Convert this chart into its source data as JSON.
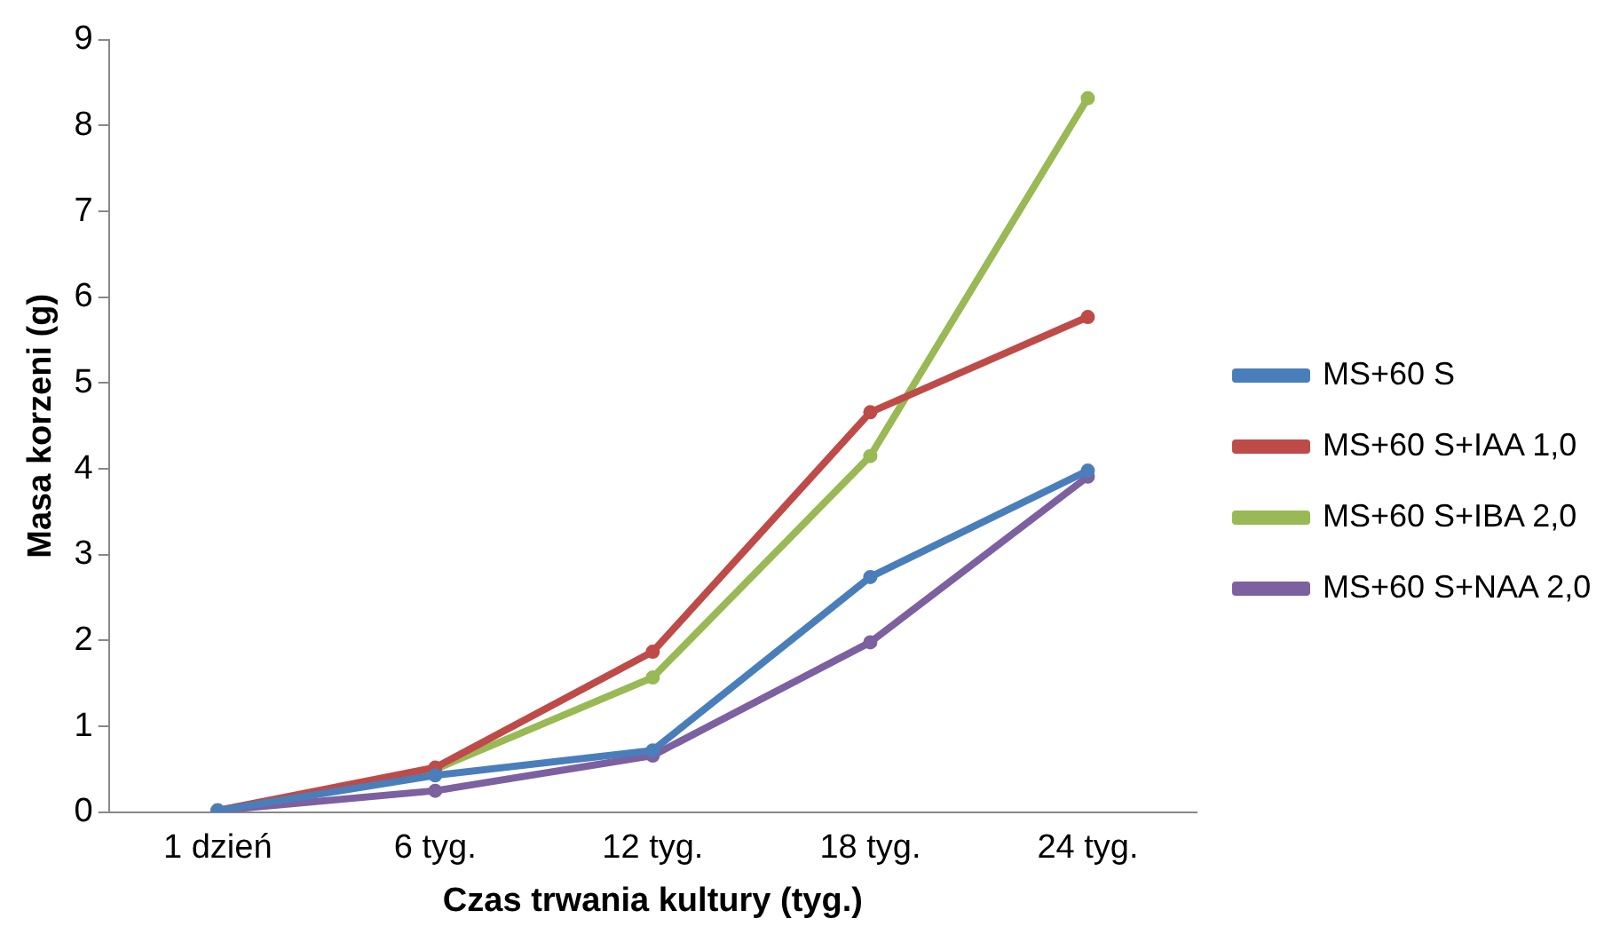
{
  "chart_data": {
    "type": "line",
    "xlabel": "Czas trwania kultury (tyg.)",
    "ylabel": "Masa korzeni (g)",
    "categories": [
      "1 dzień",
      "6 tyg.",
      "12 tyg.",
      "18 tyg.",
      "24 tyg."
    ],
    "series": [
      {
        "name": "MS+60 S",
        "color": "#4a7ebb",
        "values": [
          0.02,
          0.43,
          0.72,
          2.74,
          3.98
        ]
      },
      {
        "name": "MS+60 S+IAA 1,0",
        "color": "#be4b48",
        "values": [
          0.02,
          0.52,
          1.87,
          4.66,
          5.77
        ]
      },
      {
        "name": "MS+60 S+IBA 2,0",
        "color": "#98b954",
        "values": [
          0.02,
          0.5,
          1.57,
          4.15,
          8.32
        ]
      },
      {
        "name": "MS+60 S+NAA 2,0",
        "color": "#7d60a0",
        "values": [
          0.02,
          0.25,
          0.66,
          1.98,
          3.91
        ]
      }
    ],
    "ylim": [
      0,
      9
    ],
    "yticks": [
      0,
      1,
      2,
      3,
      4,
      5,
      6,
      7,
      8,
      9
    ],
    "grid": false,
    "legend": "right",
    "marker": "circle",
    "line_style": "solid"
  }
}
